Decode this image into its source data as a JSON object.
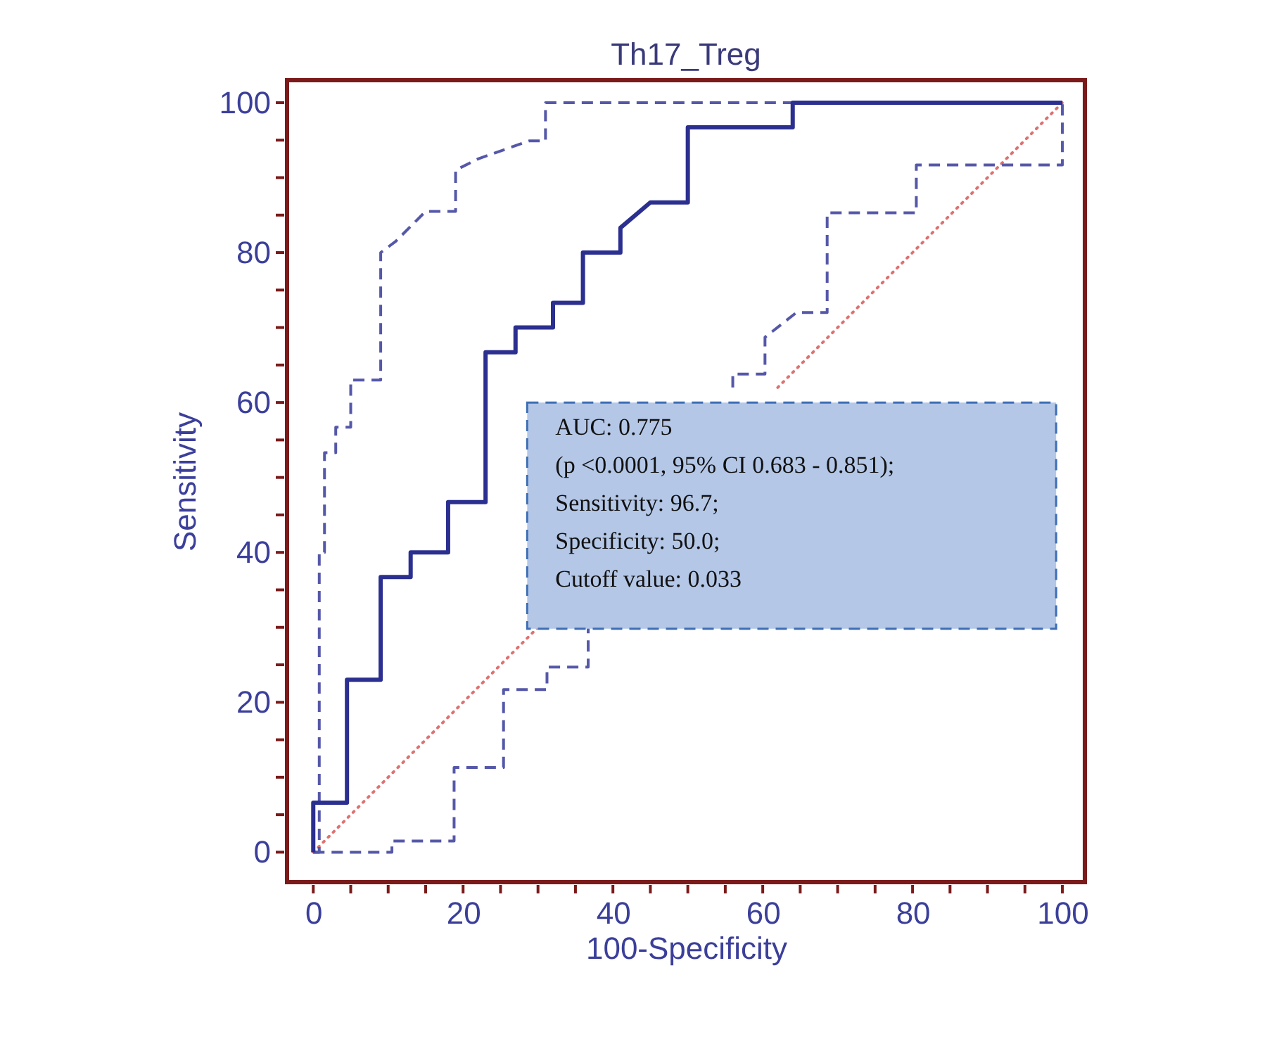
{
  "chart_data": {
    "type": "line",
    "title": "Th17_Treg",
    "xlabel": "100-Specificity",
    "ylabel": "Sensitivity",
    "xlim": [
      -3.5,
      103
    ],
    "ylim": [
      -4,
      103
    ],
    "xticks": [
      0,
      {
        "value": 5,
        "label": null
      },
      {
        "value": 10,
        "label": null
      },
      {
        "value": 15,
        "label": null
      },
      20,
      {
        "value": 25,
        "label": null
      },
      {
        "value": 30,
        "label": null
      },
      {
        "value": 35,
        "label": null
      },
      40,
      {
        "value": 45,
        "label": null
      },
      {
        "value": 50,
        "label": null
      },
      {
        "value": 55,
        "label": null
      },
      60,
      {
        "value": 65,
        "label": null
      },
      {
        "value": 70,
        "label": null
      },
      {
        "value": 75,
        "label": null
      },
      80,
      {
        "value": 85,
        "label": null
      },
      {
        "value": 90,
        "label": null
      },
      {
        "value": 95,
        "label": null
      },
      100
    ],
    "yticks": [
      0,
      {
        "value": 5,
        "label": null
      },
      {
        "value": 10,
        "label": null
      },
      {
        "value": 15,
        "label": null
      },
      20,
      {
        "value": 25,
        "label": null
      },
      {
        "value": 30,
        "label": null
      },
      {
        "value": 35,
        "label": null
      },
      40,
      {
        "value": 45,
        "label": null
      },
      {
        "value": 50,
        "label": null
      },
      {
        "value": 55,
        "label": null
      },
      60,
      {
        "value": 65,
        "label": null
      },
      {
        "value": 70,
        "label": null
      },
      {
        "value": 75,
        "label": null
      },
      80,
      {
        "value": 85,
        "label": null
      },
      {
        "value": 90,
        "label": null
      },
      {
        "value": 95,
        "label": null
      },
      100
    ],
    "grid": false,
    "marker": "none",
    "series": [
      {
        "color": "#e07070",
        "line_style": "dotted",
        "x": [
          0,
          30,
          46,
          62,
          100
        ],
        "values": [
          0,
          30,
          null,
          62,
          100
        ]
      },
      {
        "color": "#5558a8",
        "line_style": "dashed",
        "x": [
          0,
          0.8,
          0.8,
          1.5,
          1.5,
          3,
          3,
          5,
          5,
          9,
          9,
          11,
          13,
          13,
          15,
          19,
          19,
          22,
          28.8,
          31,
          31,
          100
        ],
        "values": [
          0,
          0,
          40,
          40,
          53.3,
          53.3,
          56.7,
          56.7,
          63,
          63,
          80,
          81.5,
          83.5,
          83.5,
          85.5,
          85.5,
          91,
          92.5,
          94.9,
          94.9,
          100,
          100
        ]
      },
      {
        "color": "#5558a8",
        "line_style": "dashed",
        "x": [
          0,
          10.5,
          10.5,
          18.8,
          18.8,
          25.4,
          25.4,
          31.2,
          31.2,
          36.7,
          36.7,
          46,
          56,
          56,
          60.3,
          60.3,
          64.5,
          68.6,
          68.6,
          80.5,
          80.5,
          100,
          100
        ],
        "values": [
          0,
          0,
          1.5,
          1.5,
          11.3,
          11.3,
          21.7,
          21.7,
          24.7,
          24.7,
          30,
          null,
          62,
          63.8,
          63.8,
          68.7,
          72,
          72,
          85.3,
          85.3,
          91.7,
          91.7,
          100
        ]
      },
      {
        "color": "#2b2f8f",
        "line_style": "solid",
        "x": [
          0,
          0,
          4.5,
          4.5,
          9,
          9,
          13,
          13,
          18,
          18,
          23,
          23,
          27,
          27,
          32,
          32,
          36,
          36,
          41,
          41,
          45,
          50,
          50,
          64,
          64,
          100
        ],
        "values": [
          0,
          6.6,
          6.6,
          23,
          23,
          36.7,
          36.7,
          40,
          40,
          46.7,
          46.7,
          66.7,
          66.7,
          70,
          70,
          73.3,
          73.3,
          80,
          80,
          83.3,
          86.7,
          86.7,
          96.7,
          96.7,
          100,
          100
        ]
      }
    ],
    "annotations": [
      "AUC: 0.775",
      "(p <0.0001, 95% CI 0.683 - 0.851);",
      "Sensitivity: 96.7;",
      "Specificity: 50.0;",
      "Cutoff value: 0.033"
    ]
  }
}
